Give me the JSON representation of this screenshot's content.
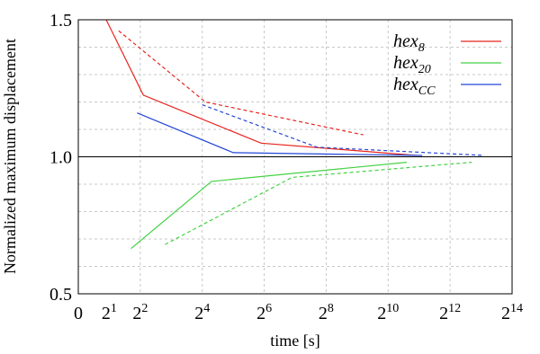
{
  "chart_data": {
    "type": "line",
    "xlabel": "time [s]",
    "ylabel": "Normalized maximum displacement",
    "xscale": "log2",
    "x_axis_origin_label": "0",
    "xlim": [
      0,
      14
    ],
    "ylim": [
      0.5,
      1.5
    ],
    "x_ticks": [
      {
        "base": "0",
        "exp": ""
      },
      {
        "base": "2",
        "exp": "1"
      },
      {
        "base": "2",
        "exp": "2"
      },
      {
        "base": "2",
        "exp": "4"
      },
      {
        "base": "2",
        "exp": "6"
      },
      {
        "base": "2",
        "exp": "8"
      },
      {
        "base": "2",
        "exp": "10"
      },
      {
        "base": "2",
        "exp": "12"
      },
      {
        "base": "2",
        "exp": "14"
      }
    ],
    "y_ticks": [
      "0.5",
      "1.0",
      "1.5"
    ],
    "grid": true,
    "reference_line": 1.0,
    "legend_position": "top-right",
    "legend": [
      {
        "base": "hex",
        "sub": "8",
        "color": "#e8251f"
      },
      {
        "base": "hex",
        "sub": "20",
        "color": "#44d144"
      },
      {
        "base": "hex",
        "sub": "CC",
        "color": "#2346d8"
      }
    ],
    "series": [
      {
        "group": 0,
        "style": "solid",
        "color": "#e8251f",
        "points": [
          [
            0.9,
            1.5
          ],
          [
            2.1,
            1.225
          ],
          [
            5.9,
            1.05
          ],
          [
            10.9,
            1.005
          ]
        ]
      },
      {
        "group": 0,
        "style": "dashed",
        "color": "#e8251f",
        "points": [
          [
            1.3,
            1.46
          ],
          [
            4.1,
            1.2
          ],
          [
            9.2,
            1.08
          ]
        ]
      },
      {
        "group": 1,
        "style": "solid",
        "color": "#44d144",
        "points": [
          [
            1.7,
            0.665
          ],
          [
            4.3,
            0.91
          ],
          [
            10.6,
            0.98
          ]
        ]
      },
      {
        "group": 1,
        "style": "dashed",
        "color": "#44d144",
        "points": [
          [
            2.8,
            0.68
          ],
          [
            6.9,
            0.925
          ],
          [
            12.7,
            0.98
          ]
        ]
      },
      {
        "group": 2,
        "style": "solid",
        "color": "#2346d8",
        "points": [
          [
            1.9,
            1.16
          ],
          [
            5.0,
            1.015
          ],
          [
            11.1,
            1.005
          ]
        ]
      },
      {
        "group": 2,
        "style": "dashed",
        "color": "#2346d8",
        "points": [
          [
            4.0,
            1.19
          ],
          [
            7.7,
            1.035
          ],
          [
            13.1,
            1.005
          ]
        ]
      }
    ]
  }
}
